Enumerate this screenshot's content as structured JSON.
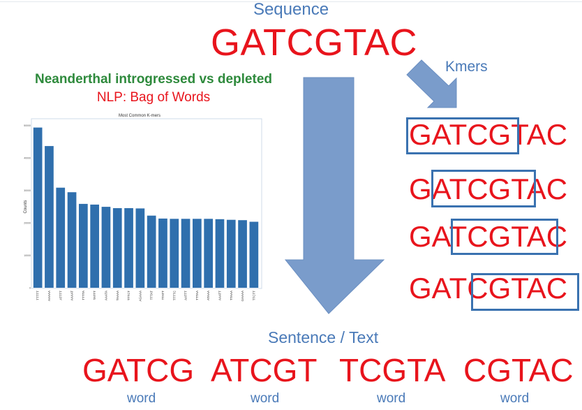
{
  "sequence": {
    "heading": "Sequence",
    "seq": "GATCGTAC"
  },
  "kmers_label": "Kmers",
  "titles": {
    "line1": "Neanderthal introgressed vs depleted",
    "line2": "NLP: Bag of Words"
  },
  "kmer_rows": [
    {
      "pre": "",
      "mid": "GATCG",
      "post": "TAC"
    },
    {
      "pre": "G",
      "mid": "ATCGT",
      "post": "AC"
    },
    {
      "pre": "GA",
      "mid": "TCGTA",
      "post": "C"
    },
    {
      "pre": "GAT",
      "mid": "CGTAC",
      "post": ""
    }
  ],
  "sentence": {
    "heading": "Sentence / Text",
    "words": [
      "GATCG",
      "ATCGT",
      "TCGTA",
      "CGTAC"
    ],
    "word_label": "word"
  },
  "colors": {
    "accent_blue": "#4a7ab8",
    "red": "#e8141c",
    "green": "#2e8a3c",
    "box_blue": "#3a72b0",
    "arrow_blue": "#7a9ccb",
    "bar_blue": "#2f6fad"
  },
  "chart_data": {
    "type": "bar",
    "title": "Most Common K-mers",
    "xlabel": "",
    "ylabel": "Counts",
    "categories": [
      "TTTTT",
      "AAAAA",
      "ATTTT",
      "AAAAT",
      "TTTTA",
      "TATTT",
      "AAATA",
      "TAAAA",
      "TTTCT",
      "AGAAA",
      "TTTAT",
      "TTATT",
      "TTTTC",
      "AATTT",
      "TTTAA",
      "ATAAA",
      "AAATT",
      "TTAAA",
      "GAAAA",
      "TTCTT"
    ],
    "values": [
      49300,
      43600,
      30800,
      29400,
      25800,
      25600,
      24900,
      24500,
      24500,
      24400,
      22200,
      21300,
      21200,
      21200,
      21200,
      21200,
      21100,
      20900,
      20800,
      20300
    ],
    "ylim": [
      0,
      52000
    ],
    "yticks": [
      "0",
      "10000",
      "20000",
      "30000",
      "40000",
      "50000"
    ],
    "grid": false,
    "legend": "none"
  }
}
